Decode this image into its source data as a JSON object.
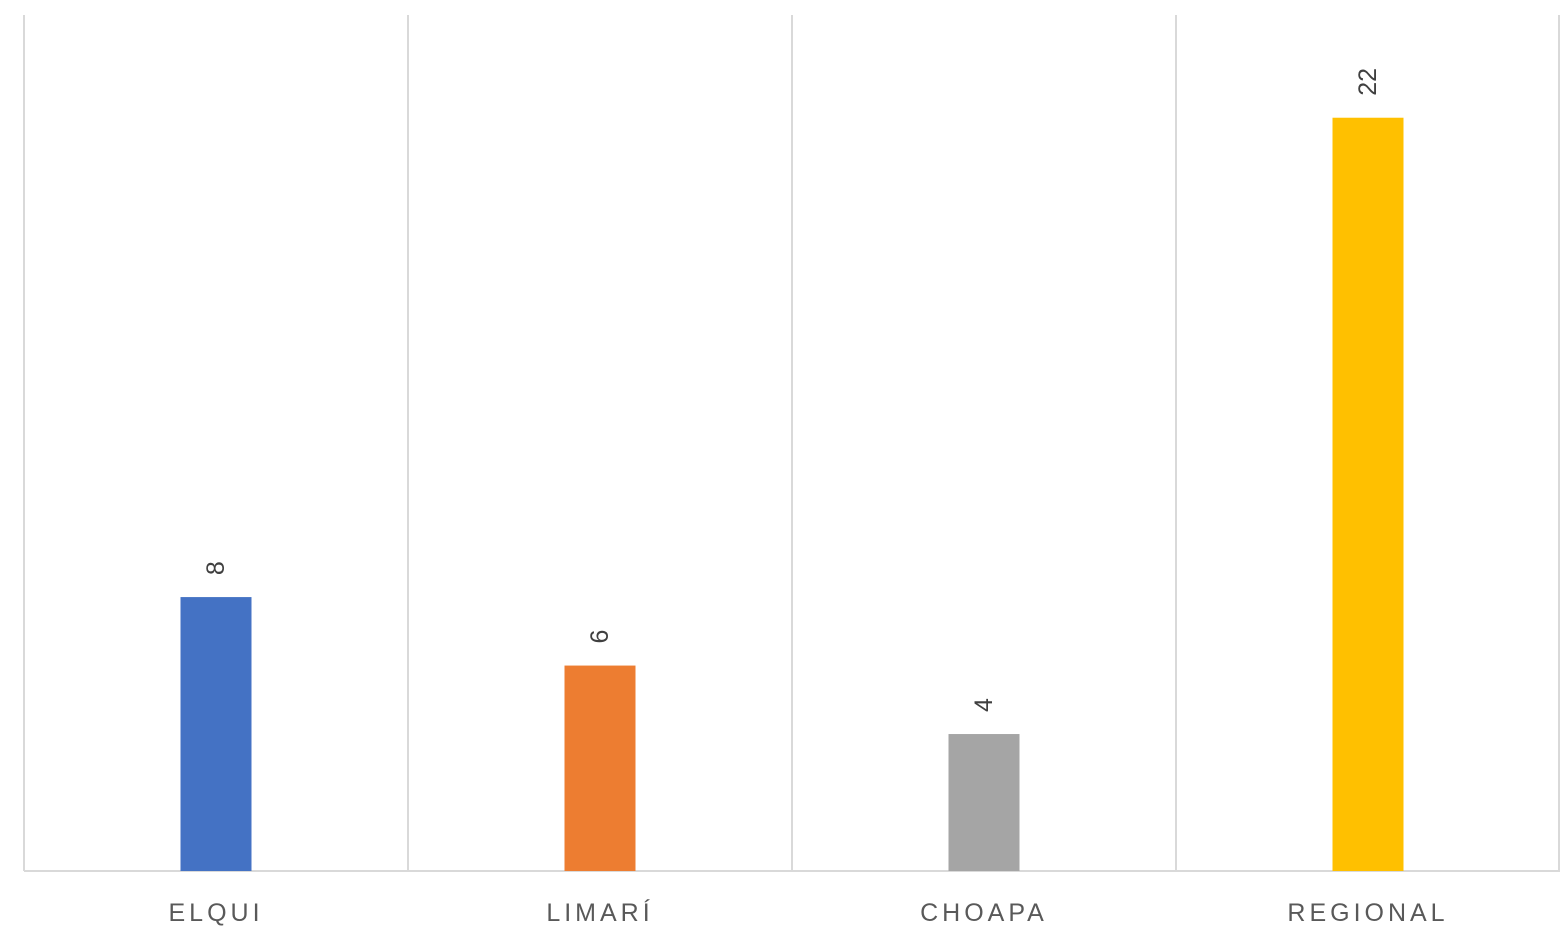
{
  "chart_data": {
    "type": "bar",
    "categories": [
      "ELQUI",
      "LIMARÍ",
      "CHOAPA",
      "REGIONAL"
    ],
    "values": [
      8,
      6,
      4,
      22
    ],
    "colors": [
      "#4472C4",
      "#ED7D31",
      "#A5A5A5",
      "#FFC000"
    ],
    "ylim": [
      0,
      25
    ],
    "grid": "vertical category separators",
    "data_labels": "rotated 90° above bars",
    "legend": "none"
  }
}
